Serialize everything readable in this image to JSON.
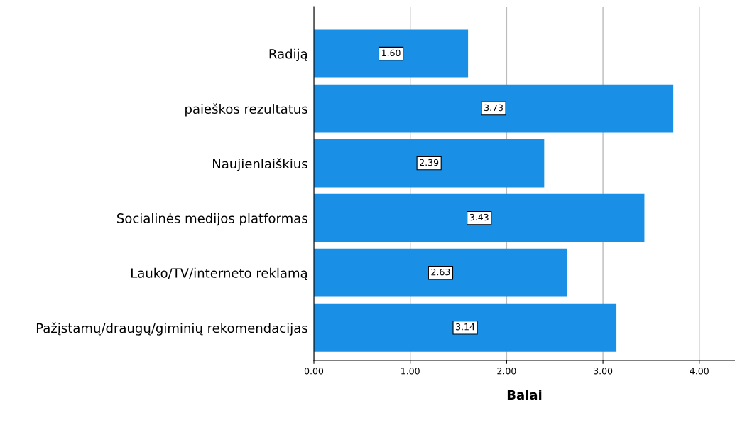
{
  "chart_data": {
    "type": "bar",
    "orientation": "horizontal",
    "xlabel": "Balai",
    "categories": [
      "Radiją",
      "paieškos rezultatus",
      "Naujienlaiškius",
      "Socialinės medijos platformas",
      "Lauko/TV/interneto reklamą",
      "Pažįstamų/draugų/giminių rekomendacijas"
    ],
    "values": [
      1.6,
      3.73,
      2.39,
      3.43,
      2.63,
      3.14
    ],
    "value_labels": [
      "1.60",
      "3.73",
      "2.39",
      "3.43",
      "2.63",
      "3.14"
    ],
    "color": "#1a8fe6",
    "xlim": [
      0,
      4.37
    ],
    "xticks": [
      {
        "value": 0,
        "label": "0.00"
      },
      {
        "value": 1,
        "label": "1.00"
      },
      {
        "value": 2,
        "label": "2.00"
      },
      {
        "value": 3,
        "label": "3.00"
      },
      {
        "value": 4,
        "label": "4.00"
      }
    ],
    "grid": "x"
  }
}
